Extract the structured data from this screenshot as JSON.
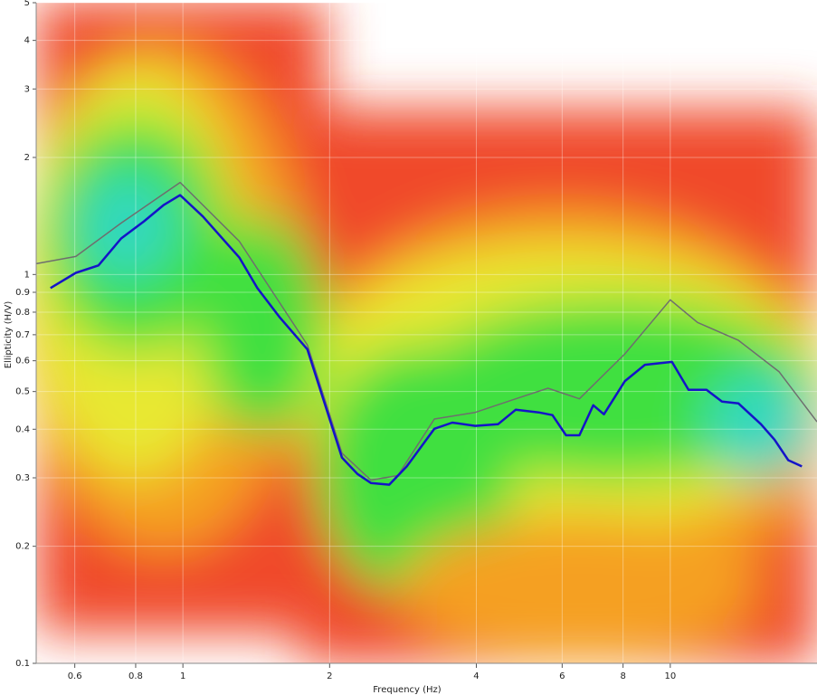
{
  "chart_data": {
    "type": "line",
    "x_label": "Frequency (Hz)",
    "y_label": "Ellipticity (H/V)",
    "xscale": "log",
    "yscale": "log",
    "xlim": [
      0.5,
      20
    ],
    "ylim": [
      0.1,
      5
    ],
    "xticks": [
      0.6,
      0.8,
      1,
      2,
      4,
      6,
      8,
      10
    ],
    "yticks": [
      0.1,
      0.2,
      0.3,
      0.4,
      0.5,
      0.6,
      0.7,
      0.8,
      0.9,
      1,
      2,
      3,
      4,
      5
    ],
    "grid": true,
    "series": [
      {
        "color": "#1414c8",
        "x": [
          0.535,
          0.603,
          0.671,
          0.747,
          0.832,
          0.914,
          0.987,
          1.099,
          1.305,
          1.421,
          1.582,
          1.8,
          2.12,
          2.28,
          2.43,
          2.65,
          2.88,
          3.28,
          3.57,
          3.98,
          4.43,
          4.82,
          5.37,
          5.73,
          6.11,
          6.51,
          6.95,
          7.31,
          8.07,
          8.87,
          10.08,
          10.9,
          11.87,
          12.77,
          13.8,
          15.35,
          16.37,
          17.46,
          18.62
        ],
        "values": [
          0.923,
          1.01,
          1.055,
          1.238,
          1.37,
          1.51,
          1.6,
          1.41,
          1.107,
          0.923,
          0.774,
          0.642,
          0.338,
          0.307,
          0.291,
          0.288,
          0.321,
          0.401,
          0.416,
          0.408,
          0.412,
          0.449,
          0.442,
          0.435,
          0.386,
          0.386,
          0.461,
          0.437,
          0.532,
          0.586,
          0.596,
          0.505,
          0.505,
          0.471,
          0.466,
          0.412,
          0.376,
          0.333,
          0.321
        ]
      },
      {
        "color": "#6e6e6e",
        "x": [
          0.5,
          0.603,
          0.747,
          0.987,
          1.305,
          1.8,
          2.12,
          2.43,
          2.76,
          3.28,
          3.98,
          4.82,
          5.61,
          6.51,
          8.07,
          10.0,
          11.37,
          13.8,
          16.73,
          20
        ],
        "values": [
          1.066,
          1.113,
          1.356,
          1.725,
          1.218,
          0.659,
          0.347,
          0.296,
          0.304,
          0.425,
          0.442,
          0.479,
          0.51,
          0.479,
          0.625,
          0.861,
          0.753,
          0.677,
          0.562,
          0.418
        ]
      }
    ]
  }
}
